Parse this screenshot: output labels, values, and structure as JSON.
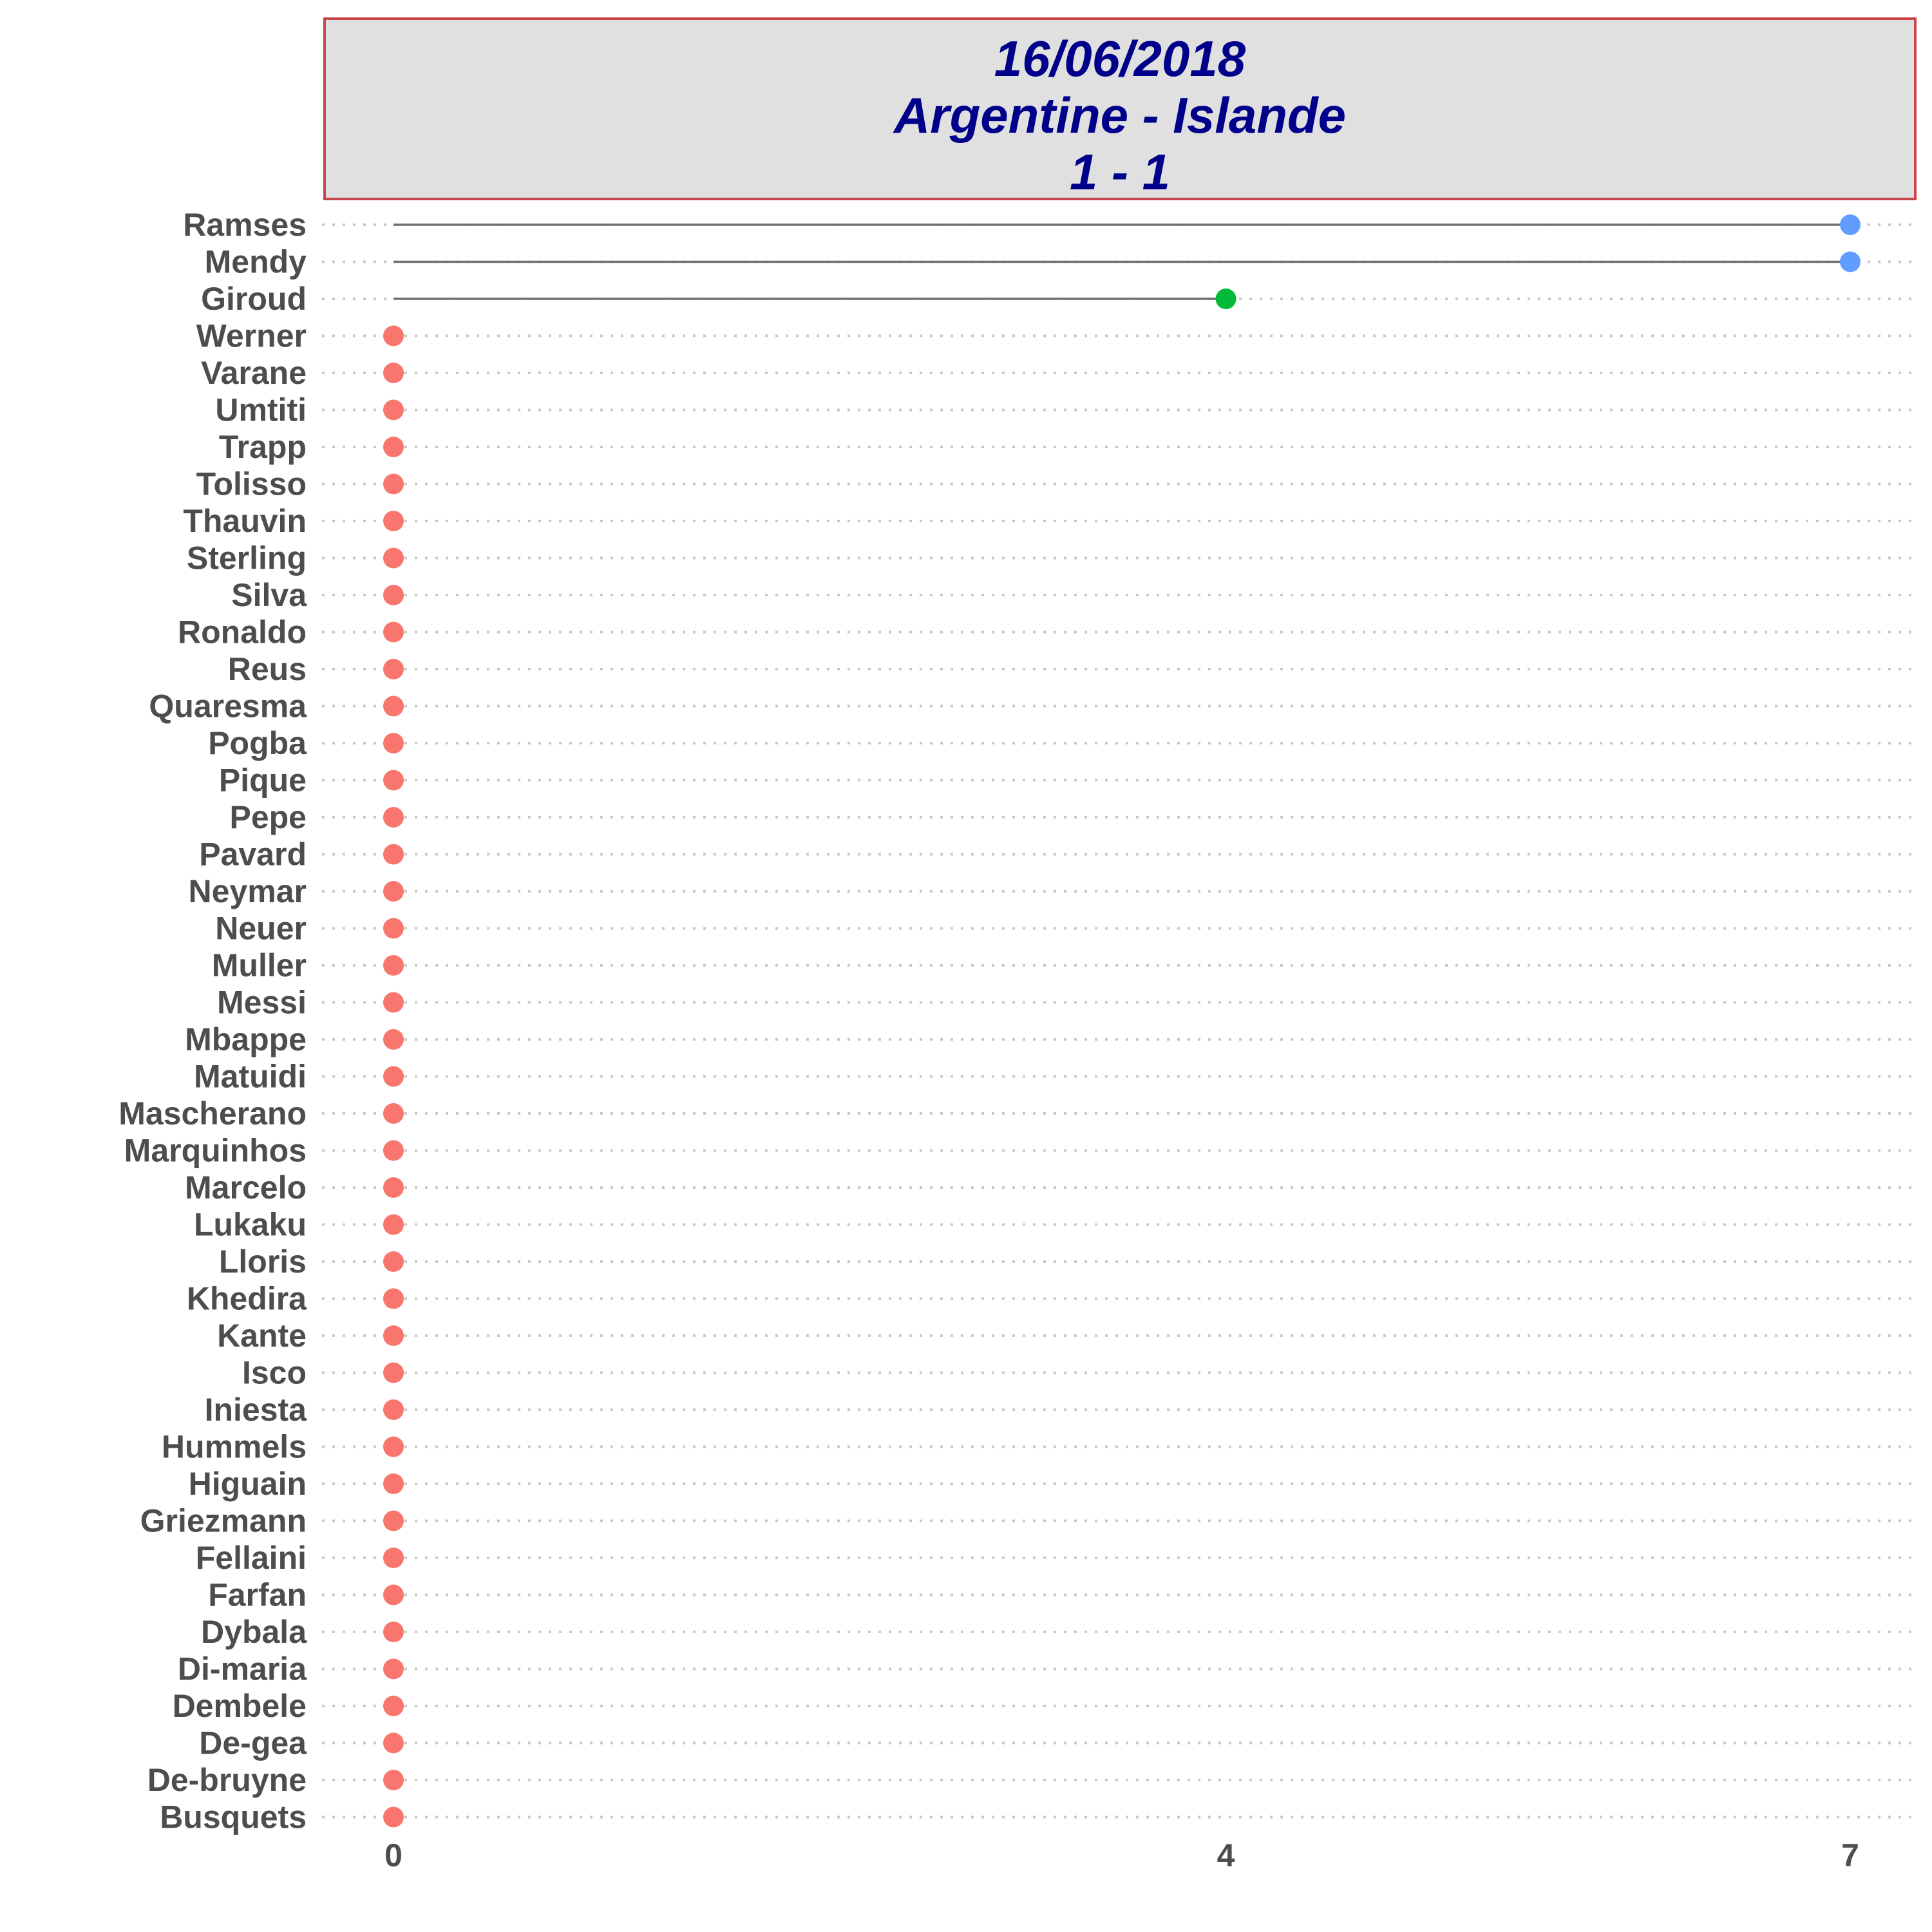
{
  "chart_data": {
    "type": "lollipop",
    "title_lines": [
      "16/06/2018",
      "Argentine - Islande",
      "1 - 1"
    ],
    "xlabel": "",
    "ylabel": "",
    "xlim": [
      0,
      7
    ],
    "x_ticks": [
      0,
      4,
      7
    ],
    "colors": {
      "seven": "#619cff",
      "four": "#00ba38",
      "zero": "#f8766d",
      "stem": "#707070",
      "label": "#4d4d4d",
      "grid": "#c8c8c8"
    },
    "points": [
      {
        "name": "Ramses",
        "value": 7,
        "color_key": "seven"
      },
      {
        "name": "Mendy",
        "value": 7,
        "color_key": "seven"
      },
      {
        "name": "Giroud",
        "value": 4,
        "color_key": "four"
      },
      {
        "name": "Werner",
        "value": 0,
        "color_key": "zero"
      },
      {
        "name": "Varane",
        "value": 0,
        "color_key": "zero"
      },
      {
        "name": "Umtiti",
        "value": 0,
        "color_key": "zero"
      },
      {
        "name": "Trapp",
        "value": 0,
        "color_key": "zero"
      },
      {
        "name": "Tolisso",
        "value": 0,
        "color_key": "zero"
      },
      {
        "name": "Thauvin",
        "value": 0,
        "color_key": "zero"
      },
      {
        "name": "Sterling",
        "value": 0,
        "color_key": "zero"
      },
      {
        "name": "Silva",
        "value": 0,
        "color_key": "zero"
      },
      {
        "name": "Ronaldo",
        "value": 0,
        "color_key": "zero"
      },
      {
        "name": "Reus",
        "value": 0,
        "color_key": "zero"
      },
      {
        "name": "Quaresma",
        "value": 0,
        "color_key": "zero"
      },
      {
        "name": "Pogba",
        "value": 0,
        "color_key": "zero"
      },
      {
        "name": "Pique",
        "value": 0,
        "color_key": "zero"
      },
      {
        "name": "Pepe",
        "value": 0,
        "color_key": "zero"
      },
      {
        "name": "Pavard",
        "value": 0,
        "color_key": "zero"
      },
      {
        "name": "Neymar",
        "value": 0,
        "color_key": "zero"
      },
      {
        "name": "Neuer",
        "value": 0,
        "color_key": "zero"
      },
      {
        "name": "Muller",
        "value": 0,
        "color_key": "zero"
      },
      {
        "name": "Messi",
        "value": 0,
        "color_key": "zero"
      },
      {
        "name": "Mbappe",
        "value": 0,
        "color_key": "zero"
      },
      {
        "name": "Matuidi",
        "value": 0,
        "color_key": "zero"
      },
      {
        "name": "Mascherano",
        "value": 0,
        "color_key": "zero"
      },
      {
        "name": "Marquinhos",
        "value": 0,
        "color_key": "zero"
      },
      {
        "name": "Marcelo",
        "value": 0,
        "color_key": "zero"
      },
      {
        "name": "Lukaku",
        "value": 0,
        "color_key": "zero"
      },
      {
        "name": "Lloris",
        "value": 0,
        "color_key": "zero"
      },
      {
        "name": "Khedira",
        "value": 0,
        "color_key": "zero"
      },
      {
        "name": "Kante",
        "value": 0,
        "color_key": "zero"
      },
      {
        "name": "Isco",
        "value": 0,
        "color_key": "zero"
      },
      {
        "name": "Iniesta",
        "value": 0,
        "color_key": "zero"
      },
      {
        "name": "Hummels",
        "value": 0,
        "color_key": "zero"
      },
      {
        "name": "Higuain",
        "value": 0,
        "color_key": "zero"
      },
      {
        "name": "Griezmann",
        "value": 0,
        "color_key": "zero"
      },
      {
        "name": "Fellaini",
        "value": 0,
        "color_key": "zero"
      },
      {
        "name": "Farfan",
        "value": 0,
        "color_key": "zero"
      },
      {
        "name": "Dybala",
        "value": 0,
        "color_key": "zero"
      },
      {
        "name": "Di-maria",
        "value": 0,
        "color_key": "zero"
      },
      {
        "name": "Dembele",
        "value": 0,
        "color_key": "zero"
      },
      {
        "name": "De-gea",
        "value": 0,
        "color_key": "zero"
      },
      {
        "name": "De-bruyne",
        "value": 0,
        "color_key": "zero"
      },
      {
        "name": "Busquets",
        "value": 0,
        "color_key": "zero"
      }
    ]
  }
}
